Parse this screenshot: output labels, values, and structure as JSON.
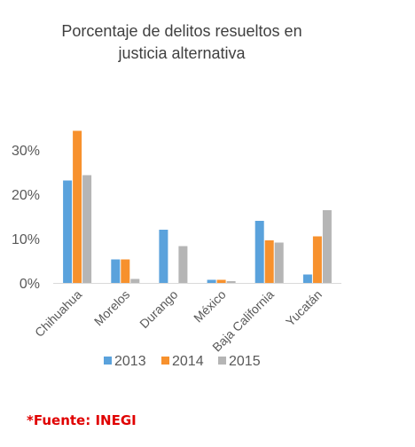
{
  "chart_data": {
    "type": "bar",
    "title": "Porcentaje de delitos resueltos en justicia alternativa",
    "title_lines": [
      "Porcentaje de delitos resueltos en",
      "justicia alternativa"
    ],
    "xlabel": "",
    "ylabel": "",
    "categories": [
      "Chihuahua",
      "Morelos",
      "Durango",
      "México",
      "Baja California",
      "Yucatán"
    ],
    "series": [
      {
        "name": "2013",
        "color": "#5aa2dc",
        "values": [
          23.1,
          5.3,
          12.0,
          0.7,
          14.0,
          1.9
        ]
      },
      {
        "name": "2014",
        "color": "#f7912d",
        "values": [
          34.3,
          5.3,
          0,
          0.7,
          9.6,
          10.5
        ]
      },
      {
        "name": "2015",
        "color": "#b5b5b5",
        "values": [
          24.3,
          0.9,
          8.3,
          0.4,
          9.1,
          16.4
        ]
      }
    ],
    "ylim": [
      0,
      35
    ],
    "yticks": [
      0,
      10,
      20,
      30
    ],
    "ytick_labels": [
      "0%",
      "10%",
      "20%",
      "30%"
    ],
    "grid": false,
    "legend_position": "bottom"
  },
  "source_note": "*Fuente: INEGI"
}
